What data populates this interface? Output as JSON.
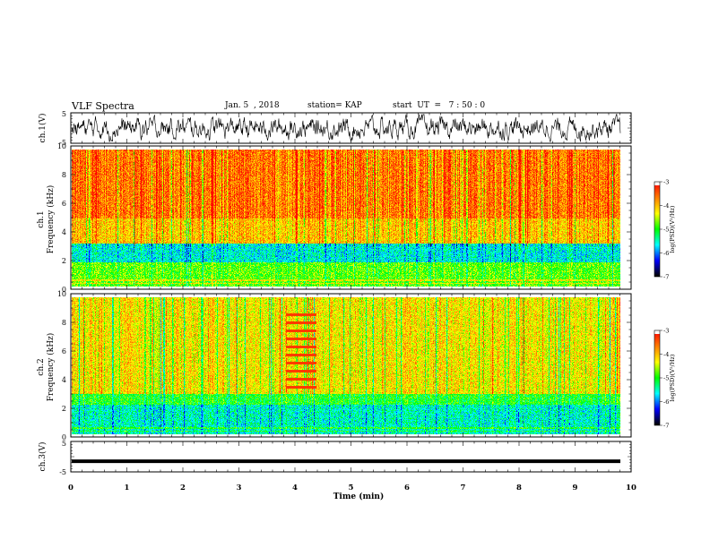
{
  "header": {
    "title": "VLF Spectra",
    "date": "Jan. 5  , 2018",
    "station": "station= KAP",
    "start": "start  UT  =   7 : 50 : 0"
  },
  "colors": {
    "stops": [
      "#000000",
      "#0000ff",
      "#00ffff",
      "#00ff00",
      "#ffff00",
      "#ff8000",
      "#ff0000",
      "#ffffff"
    ]
  },
  "chart_data": [
    {
      "type": "line",
      "id": "ch1-waveform",
      "ylabel": "ch.1(V)",
      "ylim": [
        -5,
        5
      ],
      "ytick_labels": [
        "5",
        "-5"
      ],
      "xlim": [
        0,
        10
      ],
      "description_values": {
        "mean": 0,
        "approx_range": [
          -4,
          3
        ]
      }
    },
    {
      "type": "heatmap",
      "id": "ch1-spectrogram",
      "ylabel": "ch.1\nFrequency (kHz)",
      "ylabel_lines": [
        "ch.1",
        "Frequency  (kHz)"
      ],
      "ylim": [
        0,
        10
      ],
      "ytick_labels": [
        "0",
        "2",
        "4",
        "6",
        "8",
        "10"
      ],
      "xlim": [
        0,
        10
      ],
      "data_end_min": 9.83,
      "colorbar": {
        "label": "log(PSD)(V²/Hz)",
        "range": [
          -7,
          -3
        ],
        "tick_labels": [
          "-3",
          "-4",
          "-5",
          "-6",
          "-7"
        ]
      },
      "bands": [
        {
          "freq_khz": [
            0,
            1.8
          ],
          "log_psd": -4.8
        },
        {
          "freq_khz": [
            1.8,
            3.2
          ],
          "log_psd": -5.6
        },
        {
          "freq_khz": [
            3.2,
            5.0
          ],
          "log_psd": -4.0
        },
        {
          "freq_khz": [
            5.0,
            10.0
          ],
          "log_psd": -3.6
        }
      ]
    },
    {
      "type": "heatmap",
      "id": "ch2-spectrogram",
      "ylabel": "ch.2\nFrequency (kHz)",
      "ylabel_lines": [
        "ch.2",
        "Frequency  (kHz)"
      ],
      "ylim": [
        0,
        10
      ],
      "ytick_labels": [
        "0",
        "2",
        "4",
        "6",
        "8",
        "10"
      ],
      "xlim": [
        0,
        10
      ],
      "data_end_min": 9.83,
      "colorbar": {
        "label": "log(PSD)(V²/Hz)",
        "range": [
          -7,
          -3
        ],
        "tick_labels": [
          "-3",
          "-4",
          "-5",
          "-6",
          "-7"
        ]
      },
      "bands": [
        {
          "freq_khz": [
            0,
            2.2
          ],
          "log_psd": -5.5
        },
        {
          "freq_khz": [
            2.2,
            3.0
          ],
          "log_psd": -5.0
        },
        {
          "freq_khz": [
            3.0,
            10.0
          ],
          "log_psd": -4.2
        }
      ],
      "interference_interval_min": [
        3.9,
        4.45
      ]
    },
    {
      "type": "line",
      "id": "ch3-waveform",
      "ylabel": "ch.3(V)",
      "ylim": [
        -5,
        5
      ],
      "ytick_labels": [
        "5",
        "-5"
      ],
      "xlim": [
        0,
        10
      ],
      "xlabel": "Time  (min)",
      "xtick_labels": [
        "0",
        "1",
        "2",
        "3",
        "4",
        "5",
        "6",
        "7",
        "8",
        "9",
        "10"
      ],
      "constant_value_v": -1.5
    }
  ]
}
